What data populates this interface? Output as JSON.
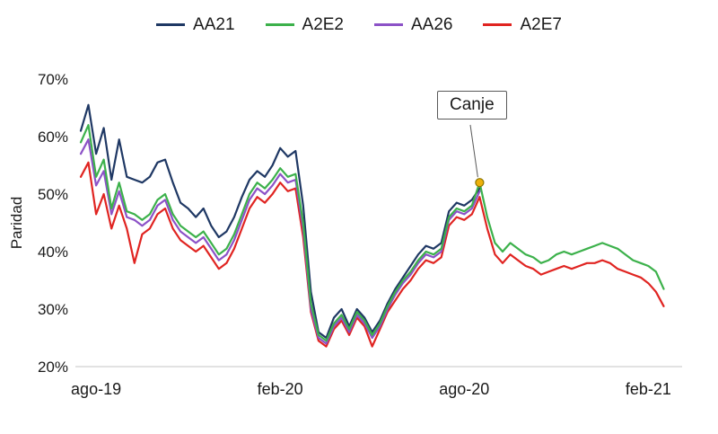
{
  "chart_data": {
    "type": "line",
    "title": "",
    "ylabel": "Paridad",
    "xlabel": "",
    "legend_position": "top",
    "grid": false,
    "x_unit": "months since ago-19",
    "x_range": [
      0,
      19.6
    ],
    "y_range": [
      20,
      70
    ],
    "x_ticks": [
      {
        "m": 0.5,
        "label": "ago-19"
      },
      {
        "m": 6.5,
        "label": "feb-20"
      },
      {
        "m": 12.5,
        "label": "ago-20"
      },
      {
        "m": 18.5,
        "label": "feb-21"
      }
    ],
    "y_ticks": [
      {
        "value": 20,
        "label": "20%"
      },
      {
        "value": 30,
        "label": "30%"
      },
      {
        "value": 40,
        "label": "40%"
      },
      {
        "value": 50,
        "label": "50%"
      },
      {
        "value": 60,
        "label": "60%"
      },
      {
        "value": 70,
        "label": "70%"
      }
    ],
    "axis_line_color": "#d9d9d9",
    "series": [
      {
        "name": "AA21",
        "color": "#1f3864",
        "x_start": 0,
        "x_step": 0.25,
        "values": [
          61,
          65.5,
          57,
          61.5,
          52.5,
          59.5,
          53,
          52.5,
          52,
          53,
          55.5,
          56,
          52,
          48.5,
          47.5,
          46,
          47.5,
          44.5,
          42.5,
          43.5,
          46,
          49.5,
          52.5,
          54,
          53,
          55,
          58,
          56.5,
          57.5,
          48,
          33,
          26,
          25,
          28.5,
          30,
          27,
          30,
          28.5,
          26,
          28,
          31,
          33.5,
          35.5,
          37.5,
          39.5,
          41,
          40.5,
          41.5,
          47,
          48.5,
          48,
          49,
          51
        ]
      },
      {
        "name": "A2E2",
        "color": "#3cb14b",
        "x_start": 0,
        "x_step": 0.25,
        "values": [
          59,
          62,
          53,
          56,
          47.5,
          52,
          47,
          46.5,
          45.5,
          46.5,
          49,
          50,
          46.5,
          44.5,
          43.5,
          42.5,
          43.5,
          41.5,
          39.5,
          40.5,
          43,
          46.5,
          50,
          52,
          51,
          52.5,
          54.5,
          53,
          53.5,
          45,
          31,
          25.5,
          24.5,
          27.5,
          29,
          26.5,
          29.5,
          28,
          25.5,
          27.5,
          30.5,
          33,
          35,
          36.5,
          38.5,
          40,
          39.5,
          40.5,
          46,
          47.5,
          47,
          48,
          52,
          46,
          41.5,
          40,
          41.5,
          40.5,
          39.5,
          39,
          38,
          38.5,
          39.5,
          40,
          39.5,
          40,
          40.5,
          41,
          41.5,
          41,
          40.5,
          39.5,
          38.5,
          38,
          37.5,
          36.5,
          33.5
        ]
      },
      {
        "name": "AA26",
        "color": "#8c52c7",
        "x_start": 0,
        "x_step": 0.25,
        "values": [
          57,
          59.5,
          51.5,
          54,
          46.5,
          50.5,
          46,
          45.5,
          44.5,
          45.5,
          48,
          49,
          45.5,
          43.5,
          42.5,
          41.5,
          42.5,
          40.5,
          38.5,
          39.5,
          42,
          45.5,
          49,
          51,
          50,
          51.5,
          53.5,
          52,
          52.5,
          44,
          30,
          25,
          24,
          27,
          28.5,
          26,
          29,
          27.5,
          25,
          27,
          30,
          32.5,
          34.5,
          36,
          38,
          39.5,
          39,
          40,
          45.5,
          47,
          46.5,
          47.5,
          50.5
        ]
      },
      {
        "name": "A2E7",
        "color": "#e02421",
        "x_start": 0,
        "x_step": 0.25,
        "values": [
          53,
          55.5,
          46.5,
          50,
          44,
          48,
          44,
          38,
          43,
          44,
          46.5,
          47.5,
          44,
          42,
          41,
          40,
          41,
          39,
          37,
          38,
          40.5,
          44,
          47.5,
          49.5,
          48.5,
          50,
          52,
          50.5,
          51,
          42.5,
          29.5,
          24.5,
          23.5,
          26.5,
          28,
          25.5,
          28.5,
          27,
          23.5,
          26.5,
          29.5,
          31.5,
          33.5,
          35,
          37,
          38.5,
          38,
          39,
          44.5,
          46,
          45.5,
          46.5,
          49.5,
          44,
          39.5,
          38,
          39.5,
          38.5,
          37.5,
          37,
          36,
          36.5,
          37,
          37.5,
          37,
          37.5,
          38,
          38,
          38.5,
          38,
          37,
          36.5,
          36,
          35.5,
          34.5,
          33,
          30.5
        ]
      }
    ],
    "annotation": {
      "label": "Canje",
      "x": 13,
      "y": 52,
      "dot_color": "#edb10c",
      "dot_stroke": "#8a7500",
      "pointer_color": "#595959"
    }
  }
}
